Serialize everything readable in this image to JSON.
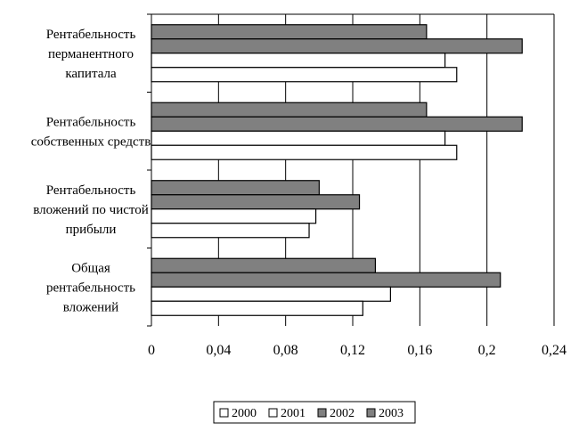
{
  "chart_data": {
    "type": "bar",
    "orientation": "horizontal",
    "categories": [
      "Рентабельность перманентного капитала",
      "Рентабельность собственных средств",
      "Рентабельность вложений по чистой прибыли",
      "Общая рентабельность вложений"
    ],
    "category_lines": [
      [
        "Рентабельность",
        "перманентного",
        "капитала"
      ],
      [
        "Рентабельность",
        "собственных средств"
      ],
      [
        "Рентабельность",
        "вложений по чистой",
        "прибыли"
      ],
      [
        "Общая",
        "рентабельность",
        "вложений"
      ]
    ],
    "series": [
      {
        "name": "2000",
        "color": "#ffffff",
        "values": [
          0.182,
          0.182,
          0.094,
          0.126
        ]
      },
      {
        "name": "2001",
        "color": "#ffffff",
        "values": [
          0.175,
          0.175,
          0.098,
          0.1425
        ]
      },
      {
        "name": "2002",
        "color": "#808080",
        "values": [
          0.221,
          0.221,
          0.124,
          0.208
        ]
      },
      {
        "name": "2003",
        "color": "#808080",
        "values": [
          0.164,
          0.164,
          0.1,
          0.1335
        ]
      }
    ],
    "xlim": [
      0,
      0.24
    ],
    "xticks": [
      "0",
      "0,04",
      "0,08",
      "0,12",
      "0,16",
      "0,2",
      "0,24"
    ],
    "xtick_values": [
      0,
      0.04,
      0.08,
      0.12,
      0.16,
      0.2,
      0.24
    ],
    "grid": "vertical",
    "legend_placement": "bottom"
  }
}
